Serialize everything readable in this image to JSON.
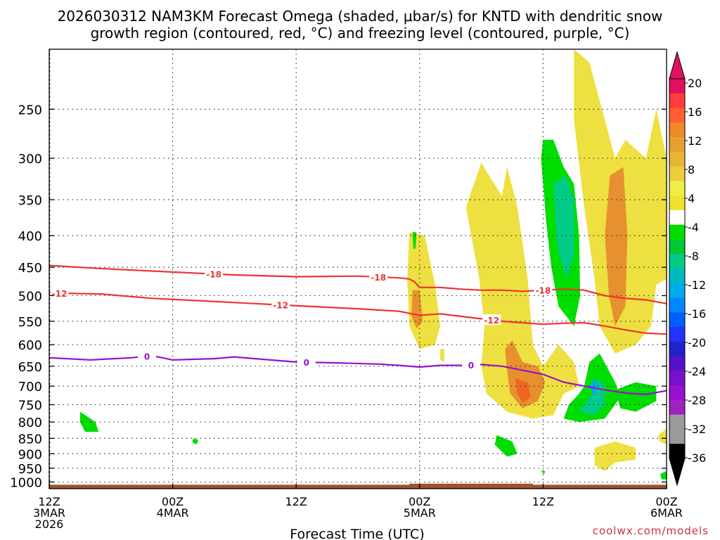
{
  "title_line1": "2026030312 NAM3KM Forecast Omega (shaded, μbar/s) for KNTD with dendritic snow",
  "title_line2": "growth region (contoured, red, °C) and freezing level (contoured, purple, °C)",
  "watermark": "coolwx.com/models",
  "chart_data": {
    "type": "heatmap",
    "title": "2026030312 NAM3KM Forecast Omega (shaded, μbar/s) for KNTD with dendritic snow growth region (contoured, red, °C) and freezing level (contoured, purple, °C)",
    "xlabel": "Forecast Time (UTC)",
    "ylabel": "",
    "x_unit": "forecast hour",
    "xlim": [
      0,
      60
    ],
    "y_scale": "log-pressure (hPa)",
    "ylim": [
      1025,
      200
    ],
    "grid": true,
    "x_ticks": [
      {
        "hour": 0,
        "lines": [
          "12Z",
          "3MAR",
          "2026"
        ]
      },
      {
        "hour": 12,
        "lines": [
          "00Z",
          "4MAR"
        ]
      },
      {
        "hour": 24,
        "lines": [
          "12Z"
        ]
      },
      {
        "hour": 36,
        "lines": [
          "00Z",
          "5MAR"
        ]
      },
      {
        "hour": 48,
        "lines": [
          "12Z"
        ]
      },
      {
        "hour": 60,
        "lines": [
          "00Z",
          "6MAR"
        ]
      }
    ],
    "y_ticks": [
      250,
      300,
      350,
      400,
      450,
      500,
      550,
      600,
      650,
      700,
      750,
      800,
      850,
      900,
      950,
      1000
    ],
    "colorbar": {
      "labels": [
        "20",
        "16",
        "12",
        "8",
        "4",
        "-4",
        "-8",
        "-12",
        "-16",
        "-20",
        "-24",
        "-28",
        "-32",
        "-36"
      ],
      "bands": [
        {
          "value": 20,
          "color": "#e0115f"
        },
        {
          "value": 18,
          "color": "#ff3b3b"
        },
        {
          "value": 16,
          "color": "#ff6030"
        },
        {
          "value": 14,
          "color": "#ee8a2a"
        },
        {
          "value": 12,
          "color": "#e9a030"
        },
        {
          "value": 10,
          "color": "#e8b535"
        },
        {
          "value": 8,
          "color": "#eccd3a"
        },
        {
          "value": 6,
          "color": "#eeee44"
        },
        {
          "value": 4,
          "color": "#f0e030"
        },
        {
          "value": 0,
          "color": "#ffffff"
        },
        {
          "value": -4,
          "color": "#00dd00"
        },
        {
          "value": -6,
          "color": "#00c830"
        },
        {
          "value": -8,
          "color": "#00cc88"
        },
        {
          "value": -10,
          "color": "#00bbbb"
        },
        {
          "value": -12,
          "color": "#00aaee"
        },
        {
          "value": -14,
          "color": "#0088ff"
        },
        {
          "value": -16,
          "color": "#0060ff"
        },
        {
          "value": -18,
          "color": "#2233ff"
        },
        {
          "value": -20,
          "color": "#2222cc"
        },
        {
          "value": -22,
          "color": "#5511cc"
        },
        {
          "value": -24,
          "color": "#7711cc"
        },
        {
          "value": -26,
          "color": "#9911cc"
        },
        {
          "value": -28,
          "color": "#a020c0"
        },
        {
          "value": -30,
          "color": "#9a9a9a"
        },
        {
          "value": -32,
          "color": "#9a9a9a"
        },
        {
          "value": -34,
          "color": "#000000"
        }
      ]
    },
    "omega_regions": [
      {
        "name": "y1",
        "value": 4,
        "color": "#eee040",
        "points": [
          [
            35,
            395
          ],
          [
            36.5,
            400
          ],
          [
            37.5,
            480
          ],
          [
            38,
            560
          ],
          [
            37.5,
            600
          ],
          [
            36,
            610
          ],
          [
            35,
            560
          ],
          [
            34.8,
            470
          ]
        ]
      },
      {
        "name": "o1",
        "value": 12,
        "color": "#e79030",
        "points": [
          [
            35.3,
            490
          ],
          [
            36,
            490
          ],
          [
            36.3,
            550
          ],
          [
            35.7,
            565
          ],
          [
            35.2,
            540
          ]
        ]
      },
      {
        "name": "y2",
        "value": 4,
        "color": "#eee040",
        "points": [
          [
            41,
            340
          ],
          [
            42,
            305
          ],
          [
            43,
            325
          ],
          [
            44,
            345
          ],
          [
            44.5,
            310
          ],
          [
            45.5,
            360
          ],
          [
            46.5,
            470
          ],
          [
            47,
            600
          ],
          [
            48,
            650
          ],
          [
            49.5,
            600
          ],
          [
            51,
            640
          ],
          [
            51.5,
            700
          ],
          [
            50,
            720
          ],
          [
            49,
            780
          ],
          [
            47,
            790
          ],
          [
            44.5,
            770
          ],
          [
            42.5,
            720
          ],
          [
            42,
            650
          ],
          [
            42.3,
            560
          ],
          [
            41.8,
            470
          ],
          [
            40.5,
            360
          ]
        ]
      },
      {
        "name": "o2",
        "value": 12,
        "color": "#e79030",
        "points": [
          [
            44.3,
            610
          ],
          [
            45,
            590
          ],
          [
            46,
            640
          ],
          [
            47.5,
            650
          ],
          [
            48.2,
            690
          ],
          [
            47.5,
            740
          ],
          [
            46,
            760
          ],
          [
            44.8,
            720
          ],
          [
            44.5,
            660
          ]
        ]
      },
      {
        "name": "o3",
        "value": 16,
        "color": "#ee6622",
        "points": [
          [
            45.3,
            680
          ],
          [
            46.5,
            690
          ],
          [
            46.8,
            730
          ],
          [
            46,
            745
          ],
          [
            45.5,
            720
          ]
        ]
      },
      {
        "name": "y3",
        "value": 4,
        "color": "#eee040",
        "points": [
          [
            51,
            200
          ],
          [
            52.5,
            210
          ],
          [
            54,
            260
          ],
          [
            55,
            300
          ],
          [
            56,
            280
          ],
          [
            58,
            300
          ],
          [
            59,
            250
          ],
          [
            60,
            300
          ],
          [
            60,
            470
          ],
          [
            59,
            480
          ],
          [
            58.5,
            560
          ],
          [
            57,
            600
          ],
          [
            55,
            620
          ],
          [
            53.5,
            560
          ],
          [
            53,
            470
          ],
          [
            52,
            360
          ],
          [
            51,
            260
          ]
        ]
      },
      {
        "name": "o4",
        "value": 12,
        "color": "#e79030",
        "points": [
          [
            54.5,
            320
          ],
          [
            55.8,
            310
          ],
          [
            56.2,
            400
          ],
          [
            56,
            520
          ],
          [
            55,
            560
          ],
          [
            54.4,
            500
          ],
          [
            54,
            400
          ]
        ]
      },
      {
        "name": "g1",
        "value": -4,
        "color": "#00dd00",
        "points": [
          [
            48,
            280
          ],
          [
            49,
            280
          ],
          [
            50,
            310
          ],
          [
            51,
            330
          ],
          [
            51.5,
            400
          ],
          [
            51.6,
            500
          ],
          [
            51,
            560
          ],
          [
            49.5,
            520
          ],
          [
            48.8,
            450
          ],
          [
            48.3,
            380
          ],
          [
            47.8,
            300
          ]
        ]
      },
      {
        "name": "t1",
        "value": -8,
        "color": "#00cc88",
        "points": [
          [
            49,
            330
          ],
          [
            50.2,
            320
          ],
          [
            51,
            350
          ],
          [
            51,
            430
          ],
          [
            50.3,
            470
          ],
          [
            49.4,
            420
          ]
        ]
      },
      {
        "name": "g2",
        "value": -4,
        "color": "#00dd00",
        "points": [
          [
            50,
            790
          ],
          [
            50.5,
            750
          ],
          [
            51.5,
            720
          ],
          [
            52,
            700
          ],
          [
            52.5,
            640
          ],
          [
            53.5,
            620
          ],
          [
            55,
            690
          ],
          [
            55.5,
            730
          ],
          [
            54,
            790
          ],
          [
            51.5,
            800
          ]
        ]
      },
      {
        "name": "g3",
        "value": -4,
        "color": "#00dd00",
        "points": [
          [
            55,
            710
          ],
          [
            57,
            690
          ],
          [
            59,
            700
          ],
          [
            59,
            740
          ],
          [
            57,
            770
          ],
          [
            55.5,
            760
          ]
        ]
      },
      {
        "name": "t2",
        "value": -8,
        "color": "#00cc88",
        "points": [
          [
            51.5,
            770
          ],
          [
            52.5,
            730
          ],
          [
            53.5,
            680
          ],
          [
            54,
            700
          ],
          [
            54,
            750
          ],
          [
            53,
            780
          ]
        ]
      },
      {
        "name": "b1",
        "value": -12,
        "color": "#00aaee",
        "points": [
          [
            52.5,
            700
          ],
          [
            53,
            680
          ],
          [
            53.3,
            700
          ],
          [
            53,
            730
          ]
        ]
      },
      {
        "name": "g4",
        "value": -4,
        "color": "#00dd00",
        "points": [
          [
            3,
            770
          ],
          [
            4.5,
            800
          ],
          [
            4.8,
            830
          ],
          [
            3.5,
            830
          ],
          [
            3,
            800
          ]
        ]
      },
      {
        "name": "g5",
        "value": -4,
        "color": "#00dd00",
        "points": [
          [
            43.5,
            840
          ],
          [
            45,
            860
          ],
          [
            45.5,
            900
          ],
          [
            44.5,
            910
          ],
          [
            43.3,
            870
          ]
        ]
      },
      {
        "name": "g6",
        "value": -4,
        "color": "#00dd00",
        "points": [
          [
            35.3,
            395
          ],
          [
            35.7,
            395
          ],
          [
            35.6,
            420
          ],
          [
            35.4,
            420
          ]
        ]
      },
      {
        "name": "g7",
        "value": -4,
        "color": "#00dd00",
        "points": [
          [
            14,
            850
          ],
          [
            14.5,
            855
          ],
          [
            14.3,
            870
          ],
          [
            13.9,
            862
          ]
        ]
      },
      {
        "name": "y4",
        "value": 4,
        "color": "#eee040",
        "points": [
          [
            53,
            880
          ],
          [
            55,
            860
          ],
          [
            57,
            880
          ],
          [
            57,
            920
          ],
          [
            55,
            930
          ],
          [
            54,
            960
          ],
          [
            53,
            940
          ]
        ]
      },
      {
        "name": "y5",
        "value": 4,
        "color": "#eee040",
        "points": [
          [
            59.2,
            840
          ],
          [
            60,
            820
          ],
          [
            60,
            870
          ],
          [
            59.3,
            860
          ]
        ]
      },
      {
        "name": "y6",
        "value": 4,
        "color": "#eee040",
        "points": [
          [
            38,
            610
          ],
          [
            38.4,
            610
          ],
          [
            38.4,
            640
          ],
          [
            38,
            635
          ]
        ]
      },
      {
        "name": "g8",
        "value": -4,
        "color": "#00dd00",
        "points": [
          [
            59.4,
            970
          ],
          [
            60,
            960
          ],
          [
            60,
            990
          ],
          [
            59.5,
            990
          ]
        ]
      },
      {
        "name": "g9",
        "value": -4,
        "color": "#00dd00",
        "points": [
          [
            47.8,
            960
          ],
          [
            48.2,
            960
          ],
          [
            48.1,
            972
          ]
        ]
      }
    ],
    "contours": [
      {
        "label": "-18",
        "color": "#ee3333",
        "label_hours": [
          16,
          32,
          48
        ],
        "points": [
          [
            0,
            447
          ],
          [
            6,
            453
          ],
          [
            12,
            458
          ],
          [
            18,
            463
          ],
          [
            24,
            466
          ],
          [
            30,
            465
          ],
          [
            34,
            468
          ],
          [
            35,
            470
          ],
          [
            35.5,
            475
          ],
          [
            36,
            485
          ],
          [
            37,
            485
          ],
          [
            38,
            485
          ],
          [
            40,
            488
          ],
          [
            42,
            490
          ],
          [
            44,
            490
          ],
          [
            46,
            492
          ],
          [
            48,
            490
          ],
          [
            50,
            488
          ],
          [
            52,
            490
          ],
          [
            54,
            500
          ],
          [
            56,
            505
          ],
          [
            58,
            508
          ],
          [
            60,
            515
          ]
        ]
      },
      {
        "label": "-12",
        "color": "#ee3333",
        "label_hours": [
          1,
          22.5,
          43
        ],
        "points": [
          [
            0,
            495
          ],
          [
            5,
            497
          ],
          [
            10,
            505
          ],
          [
            15,
            510
          ],
          [
            20,
            515
          ],
          [
            25,
            520
          ],
          [
            30,
            525
          ],
          [
            34,
            530
          ],
          [
            36,
            538
          ],
          [
            38,
            535
          ],
          [
            40,
            540
          ],
          [
            42,
            545
          ],
          [
            44,
            550
          ],
          [
            46,
            553
          ],
          [
            48,
            556
          ],
          [
            50,
            554
          ],
          [
            52,
            553
          ],
          [
            54,
            560
          ],
          [
            56,
            568
          ],
          [
            58,
            575
          ],
          [
            60,
            577
          ]
        ]
      },
      {
        "label": "0",
        "color": "#9911cc",
        "label_hours": [
          9.5,
          25,
          41
        ],
        "points": [
          [
            0,
            630
          ],
          [
            4,
            635
          ],
          [
            8,
            630
          ],
          [
            10,
            625
          ],
          [
            12,
            635
          ],
          [
            16,
            632
          ],
          [
            18,
            628
          ],
          [
            20,
            632
          ],
          [
            22,
            636
          ],
          [
            24,
            640
          ],
          [
            28,
            642
          ],
          [
            32,
            645
          ],
          [
            34,
            648
          ],
          [
            36,
            652
          ],
          [
            38,
            648
          ],
          [
            40,
            648
          ],
          [
            42,
            646
          ],
          [
            44,
            650
          ],
          [
            46,
            660
          ],
          [
            48,
            670
          ],
          [
            50,
            690
          ],
          [
            52,
            700
          ],
          [
            54,
            710
          ],
          [
            56,
            718
          ],
          [
            58,
            722
          ],
          [
            60,
            712
          ]
        ]
      }
    ],
    "ground_band": {
      "from": 1010,
      "to": 1025,
      "color": "#a0522d",
      "extra_segments": [
        [
          35,
          47,
          1006
        ]
      ]
    }
  }
}
